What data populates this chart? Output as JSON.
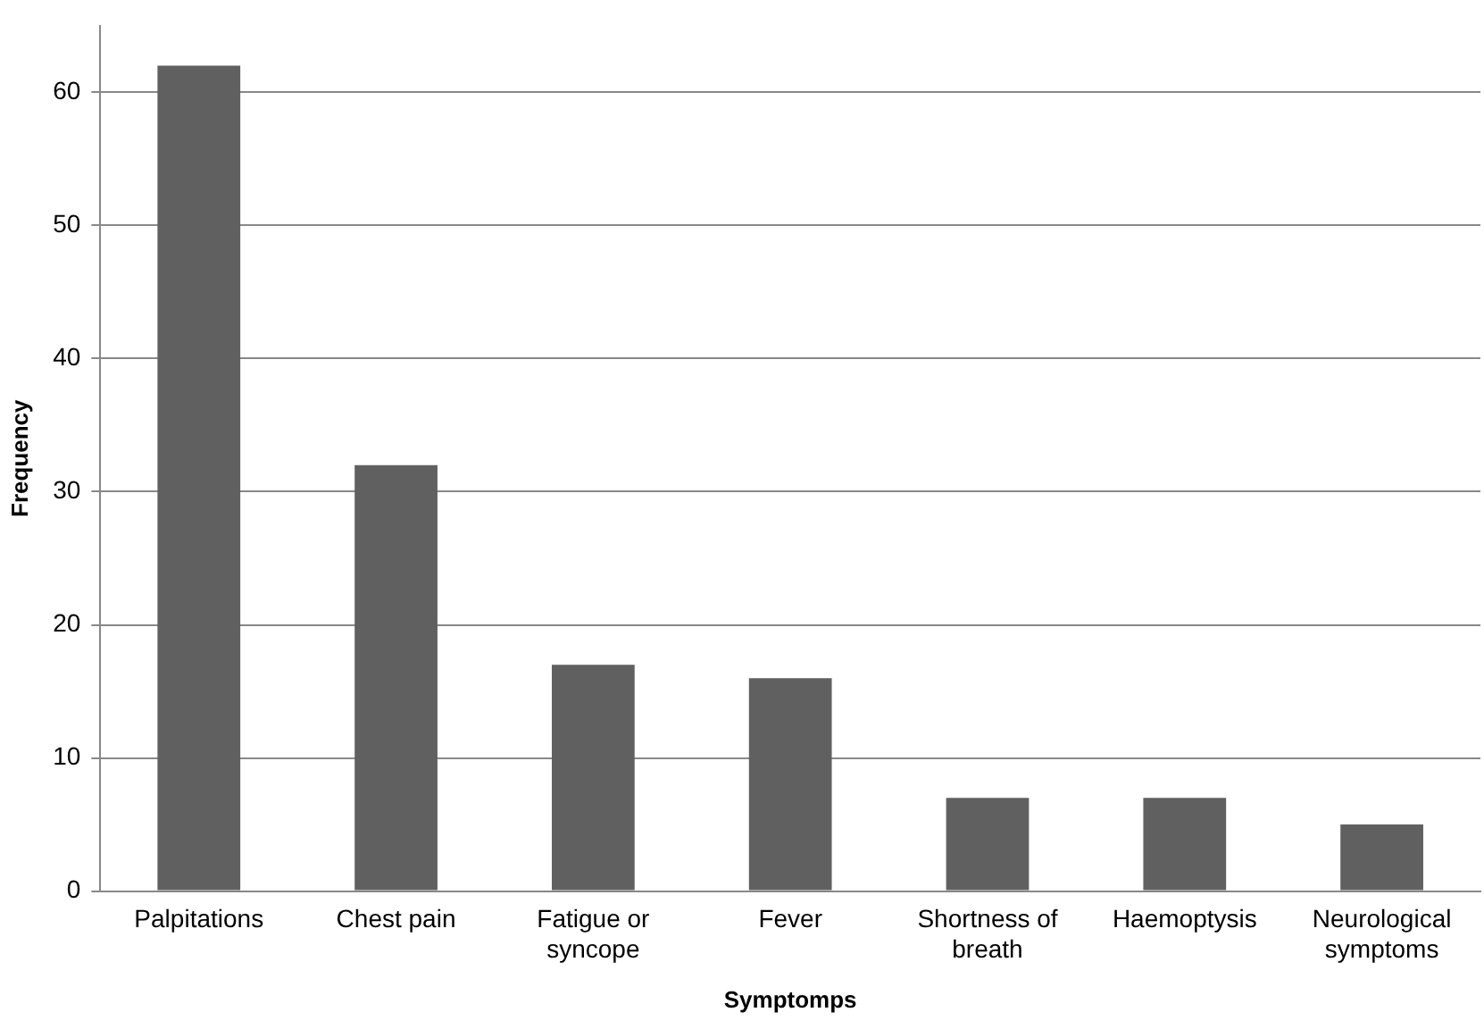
{
  "chart_data": {
    "type": "bar",
    "xlabel": "Symptomps",
    "ylabel": "Frequency",
    "categories": [
      "Palpitations",
      "Chest pain",
      "Fatigue or syncope",
      "Fever",
      "Shortness of breath",
      "Haemoptysis",
      "Neurological symptoms"
    ],
    "values": [
      62,
      32,
      17,
      16,
      7,
      7,
      5
    ],
    "color": "#606060",
    "ylim": [
      0,
      65
    ],
    "yticks": [
      0,
      10,
      20,
      30,
      40,
      50,
      60
    ],
    "grid": "y",
    "legend": false
  }
}
